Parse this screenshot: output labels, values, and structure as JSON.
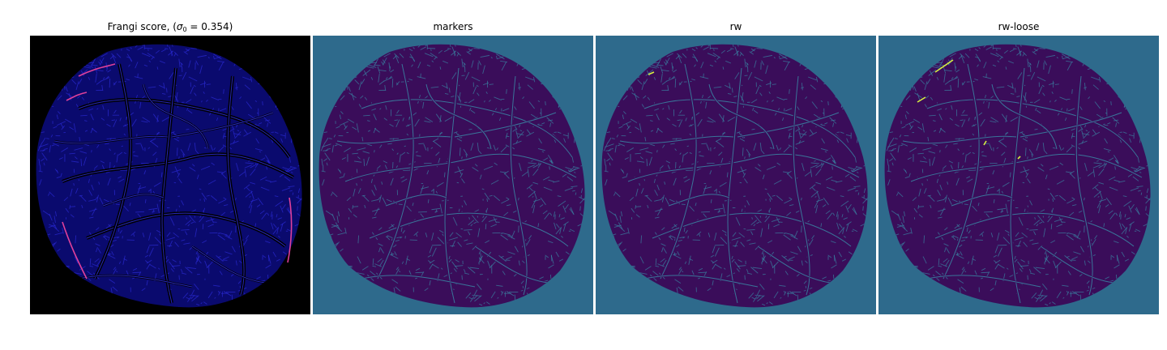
{
  "panels": [
    {
      "id": "frangi",
      "title_prefix": "Frangi score, (",
      "sigma_symbol": "σ",
      "sigma_sub": "0",
      "title_value": " = 0.354)",
      "background": "#000000",
      "blob_fill": "#0a0a6e",
      "vessel_color": "#2a2ad0",
      "highlight_color": "#e0409a"
    },
    {
      "id": "markers",
      "title": "markers",
      "background": "#2e6a8c",
      "blob_fill": "#3a0d5a",
      "vessel_color": "#3a7fa0",
      "highlight_color": ""
    },
    {
      "id": "rw",
      "title": "rw",
      "background": "#2e6a8c",
      "blob_fill": "#3a0d5a",
      "vessel_color": "#3a7fa0",
      "highlight_color": "#d8f040"
    },
    {
      "id": "rw-loose",
      "title": "rw-loose",
      "background": "#2e6a8c",
      "blob_fill": "#3a0d5a",
      "vessel_color": "#3a7fa0",
      "highlight_color": "#d8f040"
    }
  ]
}
